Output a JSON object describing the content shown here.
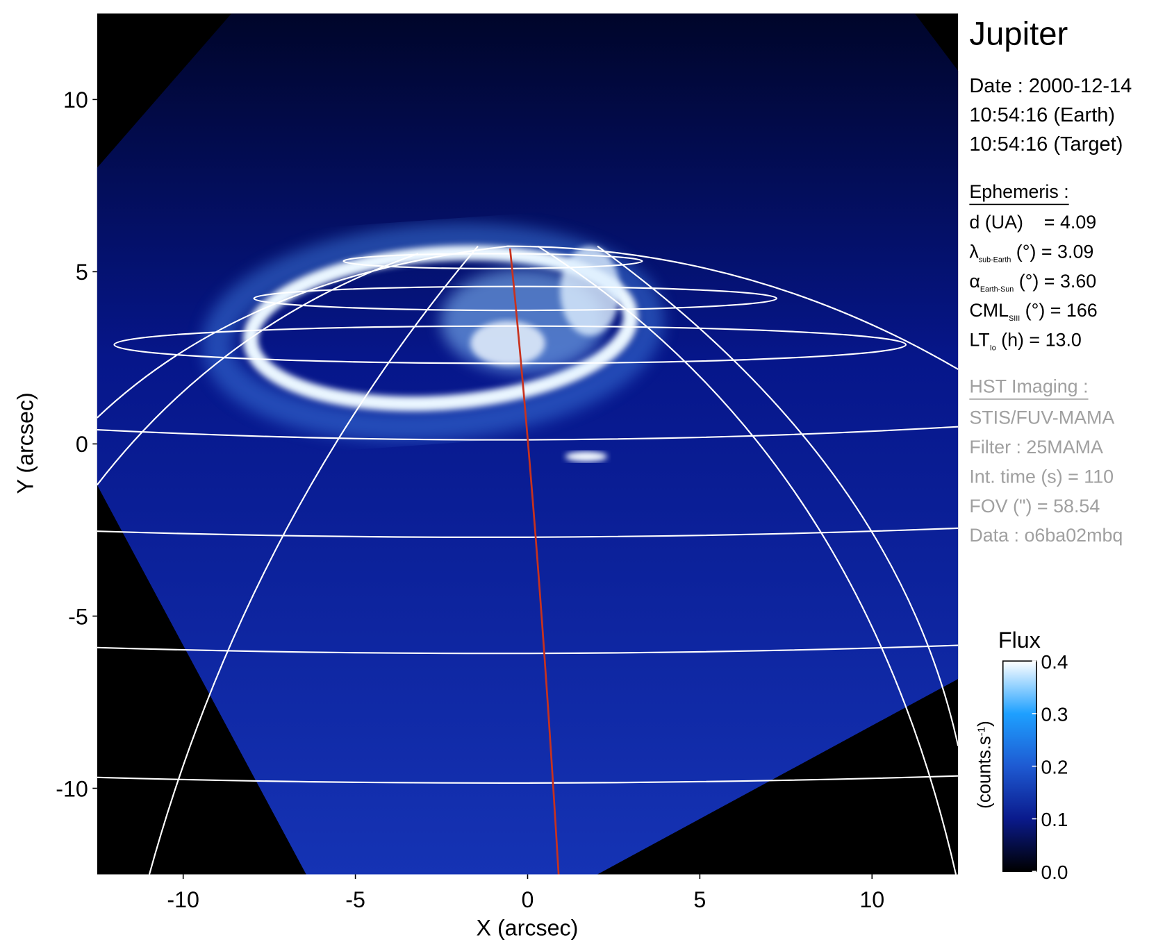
{
  "chart_data": {
    "type": "image",
    "xlabel": "X (arcsec)",
    "ylabel": "Y (arcsec)",
    "xlim": [
      -12.5,
      12.5
    ],
    "ylim": [
      -12.5,
      12.5
    ],
    "xticks": [
      -10,
      -5,
      0,
      5,
      10
    ],
    "yticks": [
      -10,
      -5,
      0,
      5,
      10
    ],
    "colorbar": {
      "title": "Flux",
      "unit": [
        "(counts.s",
        "-1",
        ")"
      ],
      "clim": [
        0,
        0.4
      ],
      "ticks": [
        {
          "value": 0,
          "label": "0.0"
        },
        0.1,
        0.2,
        0.3,
        0.4
      ],
      "colors": [
        "#000000",
        "#0a1a8c",
        "#1e5ad2",
        "#1ea0ff",
        "#ffffff"
      ]
    }
  },
  "info": {
    "target": "Jupiter",
    "date": [
      "Date : 2000-12-14",
      "10:54:16 (Earth)",
      "10:54:16 (Target)"
    ],
    "ephemeris": {
      "heading": "Ephemeris :",
      "lines": [
        [
          "d (UA)    = 4.09"
        ],
        [
          "λ",
          "sub-Earth",
          " (°) = 3.09"
        ],
        [
          "α",
          "Earth-Sun",
          " (°) = 3.60"
        ],
        [
          "CML",
          "SIII",
          " (°) = 166"
        ],
        [
          "LT",
          "Io",
          " (h) = 13.0"
        ]
      ]
    },
    "imaging": {
      "heading": "HST Imaging :",
      "lines": [
        "STIS/FUV-MAMA",
        "Filter : 25MAMA",
        "Int. time (s) = 110",
        "FOV (\") = 58.54",
        "Data : o6ba02mbq"
      ]
    }
  }
}
